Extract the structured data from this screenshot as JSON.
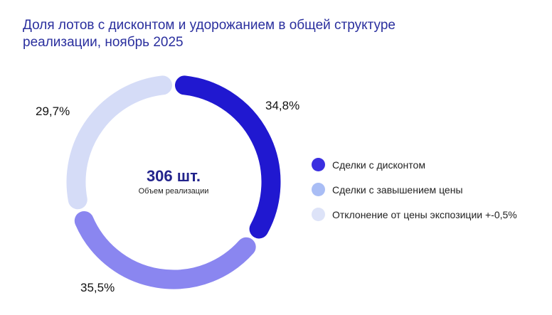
{
  "chart_data": {
    "type": "pie",
    "title": "Доля лотов с дисконтом и удорожанием в общей структуре реализации, ноябрь 2025",
    "center_value": "306 шт.",
    "center_label": "Объем реализации",
    "categories": [
      "Сделки с дисконтом",
      "Сделки с завышением цены",
      "Отклонение от цены экспозиции +-0,5%"
    ],
    "values": [
      34.8,
      35.5,
      29.7
    ],
    "labels": [
      "34,8%",
      "35,5%",
      "29,7%"
    ],
    "colors": [
      "#2018d0",
      "#8a86f0",
      "#d5dcf7"
    ],
    "legend_colors": [
      "#3a2ee0",
      "#a9bdf5",
      "#dde3f8"
    ],
    "donut": true,
    "legend_position": "right"
  }
}
